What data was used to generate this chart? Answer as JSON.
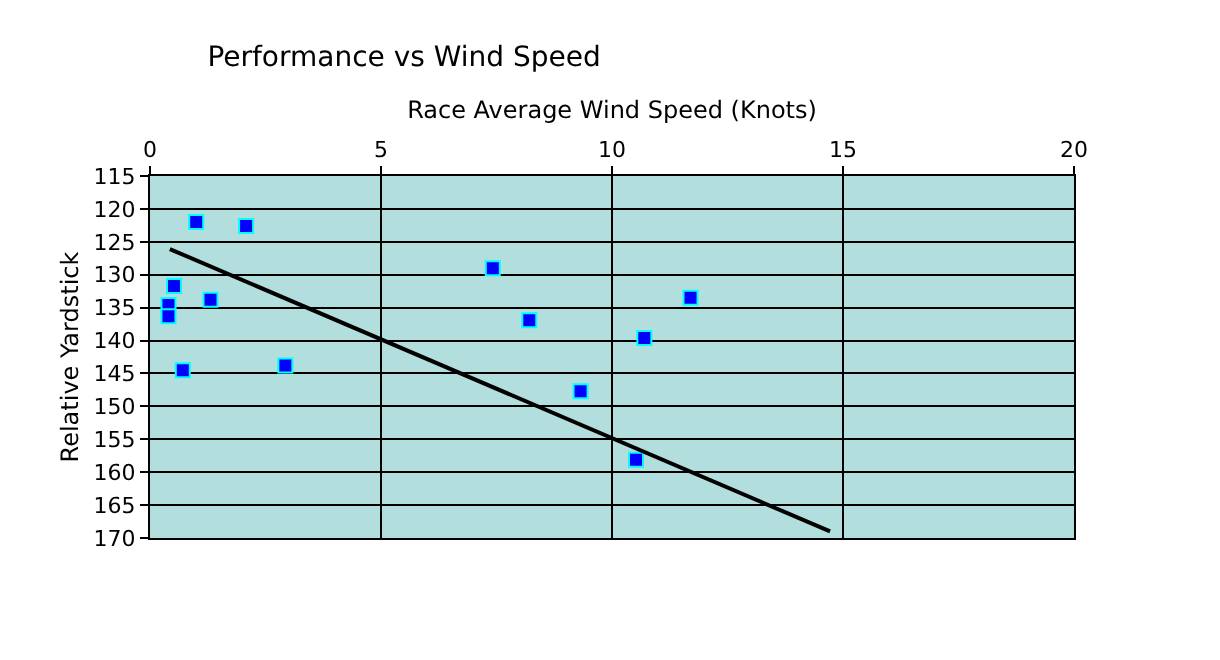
{
  "chart_data": {
    "type": "scatter",
    "title": "Performance vs Wind Speed",
    "xlabel": "Race Average Wind Speed (Knots)",
    "ylabel": "Relative Yardstick",
    "xlim": [
      0,
      20
    ],
    "xticks": [
      0,
      5,
      10,
      15,
      20
    ],
    "ylim": [
      170,
      115
    ],
    "yticks": [
      115,
      120,
      125,
      130,
      135,
      140,
      145,
      150,
      155,
      160,
      165,
      170
    ],
    "grid": true,
    "legend": false,
    "marker": "square",
    "series": [
      {
        "color": "#0000ff",
        "x": [
          1.0,
          2.08,
          0.52,
          0.4,
          0.4,
          1.31,
          0.71,
          2.93,
          7.42,
          8.21,
          9.32,
          10.52,
          10.7,
          11.7
        ],
        "values": [
          122,
          122.6,
          131.7,
          134.6,
          136.3,
          133.8,
          144.5,
          143.8,
          129,
          136.9,
          147.7,
          158.1,
          139.6,
          133.5
        ]
      },
      {
        "type": "line",
        "color": "#000000",
        "marker": "none",
        "line_style": "solid",
        "x": [
          0.43,
          14.72
        ],
        "values": [
          126.1,
          169
        ]
      }
    ]
  }
}
